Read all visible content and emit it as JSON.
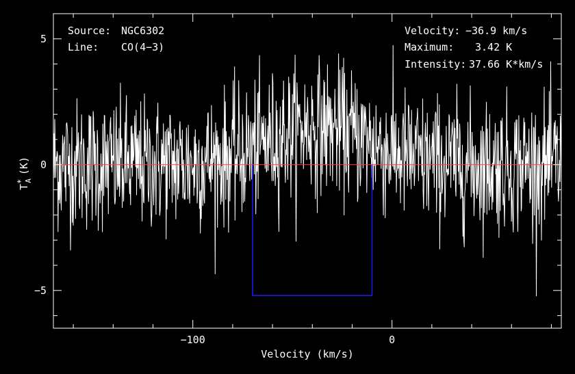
{
  "chart_data": {
    "type": "line",
    "annotations": {
      "source_label": "Source:",
      "source_value": "NGC6302",
      "line_label": "Line:",
      "line_value": "CO(4−3)",
      "velocity_label": "Velocity:",
      "velocity_value": "−36.9 km/s",
      "maximum_label": "Maximum:",
      "maximum_value": "3.42 K",
      "intensity_label": "Intensity:",
      "intensity_value": "37.66 K*km/s"
    },
    "xlabel": "Velocity (km/s)",
    "ylabel": "T",
    "ylabel_sup": "*",
    "ylabel_sub": "A",
    "ylabel_unit": "(K)",
    "xlim": [
      -170,
      85
    ],
    "ylim": [
      -6.5,
      6.0
    ],
    "xticks": [
      -100,
      0
    ],
    "xtick_labels": [
      "−100",
      "0"
    ],
    "yticks": [
      -5,
      0,
      5
    ],
    "ytick_labels": [
      "−5",
      "0",
      "5"
    ],
    "series": [
      {
        "color": "#ffffff",
        "x_start": -170,
        "x_end": 85,
        "channels": 1100,
        "noise_rms_K": 1.3,
        "line_peak_K": 1.5,
        "line_center_kms": -36.9,
        "line_width_kms": 25
      }
    ],
    "baseline": {
      "y": 0,
      "color": "#ff4040"
    },
    "integration_window": {
      "x": [
        -70,
        -10
      ],
      "y_bottom": -5.2,
      "color": "#1a1aff"
    },
    "grid": false
  }
}
